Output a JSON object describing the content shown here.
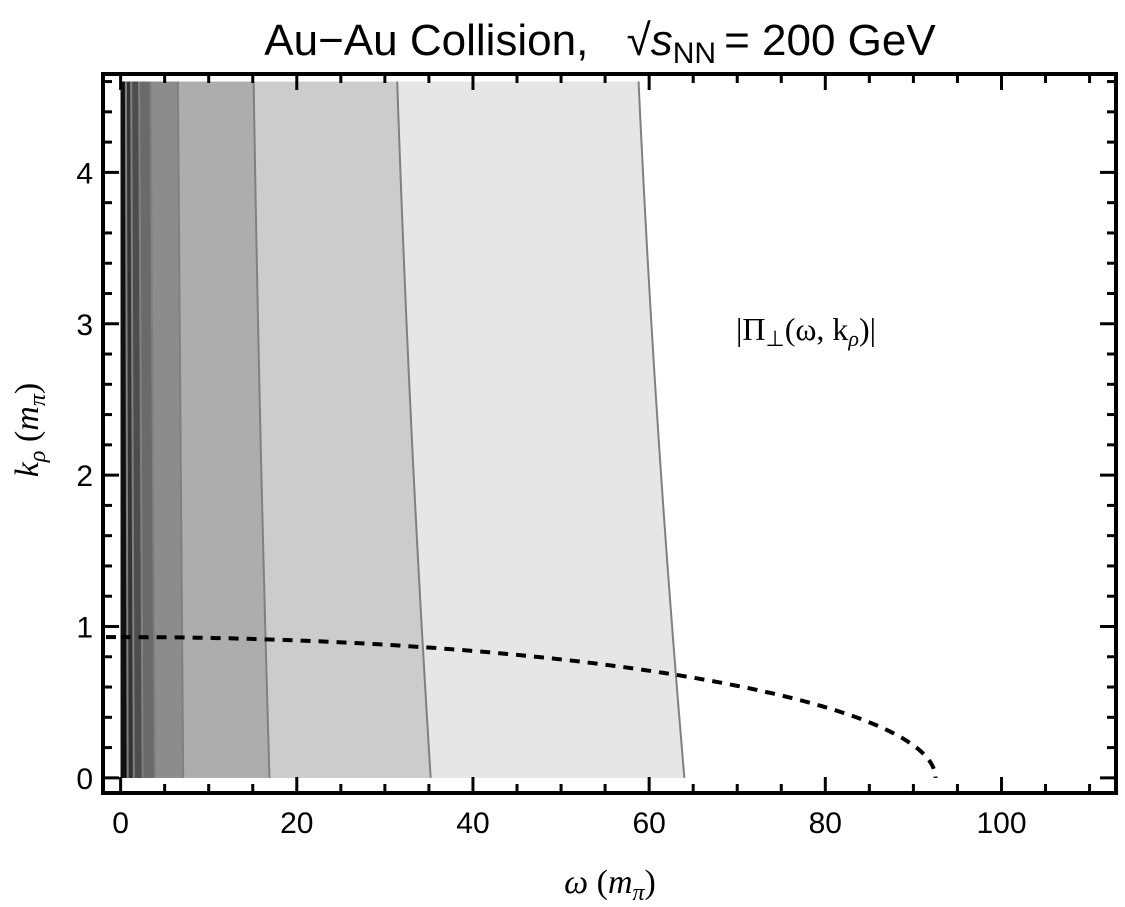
{
  "chart_data": {
    "type": "contour",
    "title": "Au−Au Collision,  √s_NN = 200 GeV",
    "title_parts": {
      "prefix": "Au−Au Collision,",
      "s": "s",
      "sub": "NN",
      "suffix": "= 200 GeV"
    },
    "xlabel": "ω (m_π)",
    "xlabel_parts": {
      "var": "ω",
      "unit": "m",
      "unit_sub": "π"
    },
    "ylabel": "k_ρ (m_π)",
    "ylabel_parts": {
      "var": "k",
      "var_sub": "ρ",
      "unit": "m",
      "unit_sub": "π"
    },
    "xlim": [
      -2,
      113
    ],
    "ylim": [
      -0.1,
      4.65
    ],
    "x_ticks": [
      0,
      20,
      40,
      60,
      80,
      100
    ],
    "y_ticks": [
      0,
      1,
      2,
      3,
      4
    ],
    "contour_extent": {
      "x": [
        0,
        64
      ],
      "y": [
        0,
        4.6
      ]
    },
    "contour_levels": [
      {
        "x_bottom": 0.8,
        "x_top": 0.6,
        "fill": "#1a1a1a"
      },
      {
        "x_bottom": 1.5,
        "x_top": 1.2,
        "fill": "#333333"
      },
      {
        "x_bottom": 2.5,
        "x_top": 2.1,
        "fill": "#4d4d4d"
      },
      {
        "x_bottom": 3.9,
        "x_top": 3.4,
        "fill": "#6a6a6a"
      },
      {
        "x_bottom": 7.1,
        "x_top": 6.5,
        "fill": "#8c8c8c"
      },
      {
        "x_bottom": 16.9,
        "x_top": 15.1,
        "fill": "#adadad"
      },
      {
        "x_bottom": 35.2,
        "x_top": 31.4,
        "fill": "#cccccc"
      },
      {
        "x_bottom": 64.0,
        "x_top": 58.8,
        "fill": "#e6e6e6"
      }
    ],
    "final_fill": "#f3f3f3",
    "dashed_curve": {
      "k_max": 0.93,
      "omega_max": 92.5
    },
    "annotation": "|Π⊥(ω, kρ)|",
    "annotation_parts": {
      "pre": "|Π",
      "sub": "⊥",
      "mid": "(ω, k",
      "sub2": "ρ",
      "post": ")|"
    }
  }
}
